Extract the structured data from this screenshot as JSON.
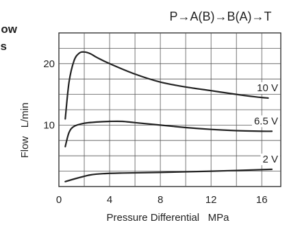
{
  "page": {
    "title_fragment_1": "ow",
    "title_fragment_2": "s"
  },
  "chart_data": {
    "type": "line",
    "title": "P→A(B)→B(A)→T",
    "xlabel": "Pressure Differential   MPa",
    "ylabel": "Flow   L/min",
    "xlim": [
      0,
      17.5
    ],
    "ylim": [
      0,
      25
    ],
    "xticks": [
      0,
      4,
      8,
      12,
      16
    ],
    "yticks": [
      10,
      20
    ],
    "grid": true,
    "series": [
      {
        "name": "10 V",
        "x": [
          0.5,
          0.8,
          1.2,
          1.6,
          2.0,
          2.5,
          3.0,
          4.0,
          6.0,
          8.0,
          10.0,
          12.0,
          14.0,
          15.5,
          16.5
        ],
        "y": [
          11.0,
          17.0,
          20.5,
          21.7,
          21.9,
          21.6,
          21.0,
          20.0,
          18.3,
          17.0,
          16.2,
          15.6,
          15.0,
          14.6,
          14.4
        ]
      },
      {
        "name": "6.5 V",
        "x": [
          0.5,
          0.8,
          1.2,
          2.0,
          3.0,
          4.0,
          5.0,
          6.0,
          8.0,
          10.0,
          12.0,
          14.0,
          16.0,
          16.8
        ],
        "y": [
          6.5,
          8.8,
          9.8,
          10.3,
          10.5,
          10.6,
          10.6,
          10.4,
          10.0,
          9.6,
          9.3,
          9.1,
          9.0,
          9.0
        ]
      },
      {
        "name": "2 V",
        "x": [
          0.5,
          1.5,
          2.5,
          3.5,
          5.0,
          8.0,
          12.0,
          16.8
        ],
        "y": [
          0.8,
          1.4,
          1.9,
          2.1,
          2.2,
          2.3,
          2.5,
          2.8
        ]
      }
    ],
    "colors": {
      "line": "#222222",
      "grid": "#555555",
      "background": "#ffffff"
    }
  }
}
